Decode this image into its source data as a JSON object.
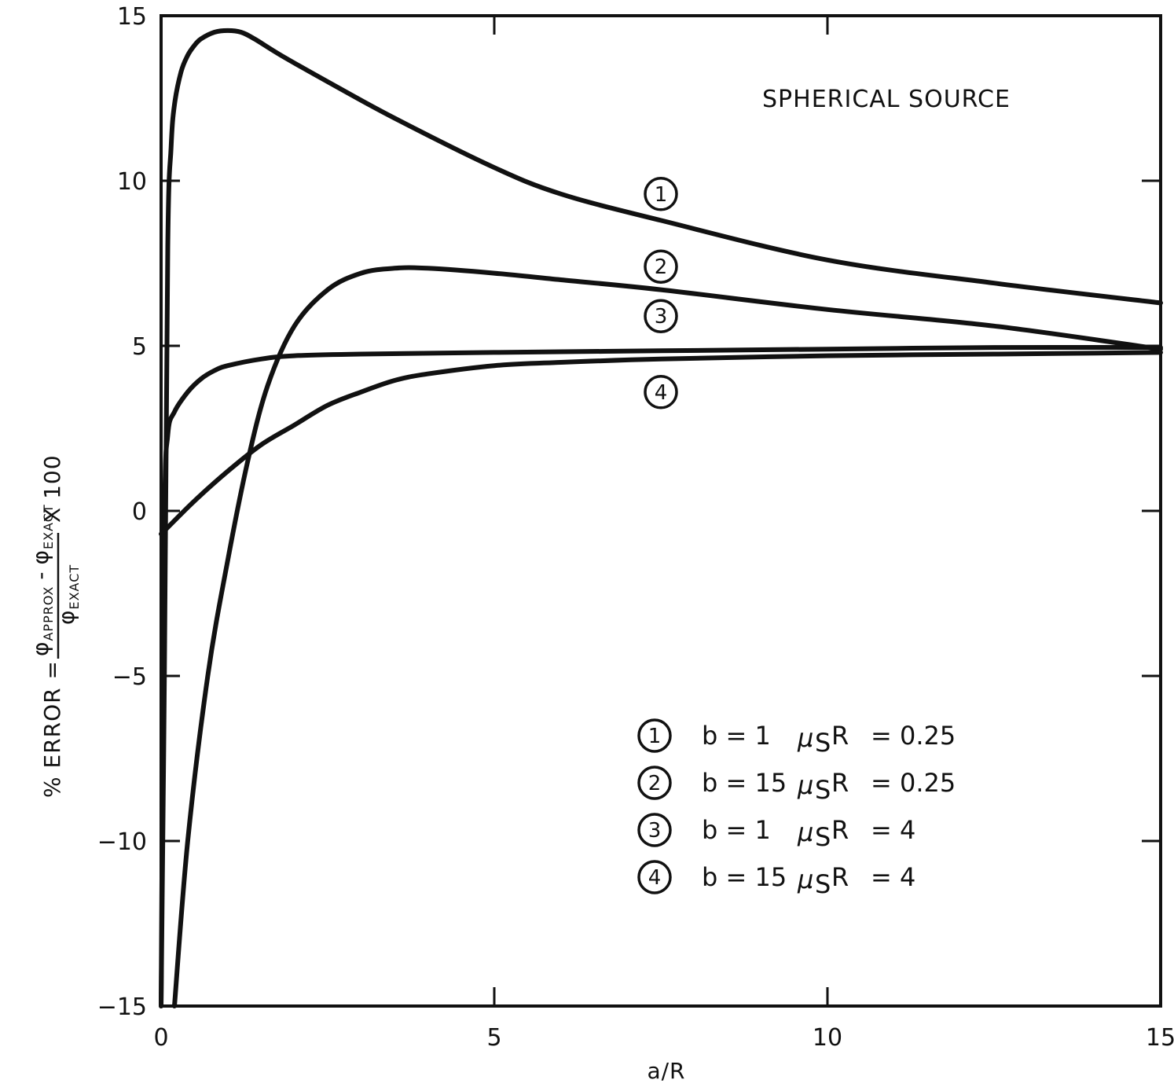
{
  "chart_data": {
    "type": "line",
    "annotation": "SPHERICAL SOURCE",
    "xlabel": "a/R",
    "ylabel": {
      "prefix": "% ERROR =",
      "numerator_a": "φ",
      "numerator_a_sub": "APPROX",
      "numerator_minus": "-",
      "numerator_b": "φ",
      "numerator_b_sub": "EXACT",
      "denominator": "φ",
      "denominator_sub": "EXACT",
      "suffix": "X 100"
    },
    "xlim": [
      0,
      15
    ],
    "ylim": [
      -15,
      15
    ],
    "x_ticks": [
      "0",
      "5",
      "10",
      "15"
    ],
    "y_ticks": [
      "15",
      "10",
      "5",
      "0",
      "-5",
      "-10",
      "-15"
    ],
    "grid": false,
    "legend_position": "lower-right",
    "series": [
      {
        "name": "1",
        "legend": {
          "b": "b = 1",
          "mu": "μ",
          "mu_sub": "S",
          "r": "R",
          "value": "= 0.25"
        },
        "x": [
          0,
          0.05,
          0.1,
          0.15,
          0.2,
          0.3,
          0.4,
          0.5,
          0.6,
          0.8,
          1.0,
          1.2,
          1.4,
          1.8,
          2.5,
          3.5,
          5,
          6,
          7.5,
          10,
          12.5,
          15
        ],
        "y": [
          -15,
          -5,
          8,
          11,
          12.3,
          13.3,
          13.8,
          14.1,
          14.3,
          14.5,
          14.55,
          14.5,
          14.3,
          13.8,
          13,
          11.9,
          10.4,
          9.6,
          8.8,
          7.6,
          6.9,
          6.3
        ]
      },
      {
        "name": "2",
        "legend": {
          "b": "b = 15",
          "mu": "μ",
          "mu_sub": "S",
          "r": "R",
          "value": "= 0.25"
        },
        "x": [
          0.2,
          0.4,
          0.7,
          1.0,
          1.3,
          1.6,
          2.0,
          2.5,
          3.0,
          3.5,
          4,
          5,
          6,
          7.5,
          10,
          12.5,
          15
        ],
        "y": [
          -15,
          -10,
          -5,
          -1.5,
          1.5,
          3.8,
          5.6,
          6.7,
          7.2,
          7.35,
          7.35,
          7.2,
          7.0,
          6.7,
          6.1,
          5.6,
          4.9
        ]
      },
      {
        "name": "3",
        "legend": {
          "b": "b = 1",
          "mu": "μ",
          "mu_sub": "S",
          "r": "R",
          "value": "= 4"
        },
        "x": [
          0,
          0.05,
          0.1,
          0.2,
          0.4,
          0.6,
          0.8,
          1.0,
          1.5,
          2,
          3,
          5,
          7.5,
          10,
          12.5,
          15
        ],
        "y": [
          -15,
          -0.5,
          2.3,
          3.0,
          3.6,
          4.0,
          4.25,
          4.4,
          4.6,
          4.7,
          4.75,
          4.8,
          4.85,
          4.9,
          4.95,
          4.95
        ]
      },
      {
        "name": "4",
        "legend": {
          "b": "b = 15",
          "mu": "μ",
          "mu_sub": "S",
          "r": "R",
          "value": "= 4"
        },
        "x": [
          0,
          0.1,
          0.5,
          1.0,
          1.5,
          2.0,
          2.5,
          3.0,
          3.5,
          4,
          5,
          6,
          7.5,
          10,
          12.5,
          15
        ],
        "y": [
          -0.7,
          -0.5,
          0.3,
          1.2,
          2.0,
          2.6,
          3.2,
          3.6,
          3.95,
          4.15,
          4.4,
          4.5,
          4.6,
          4.7,
          4.75,
          4.8
        ]
      }
    ]
  }
}
